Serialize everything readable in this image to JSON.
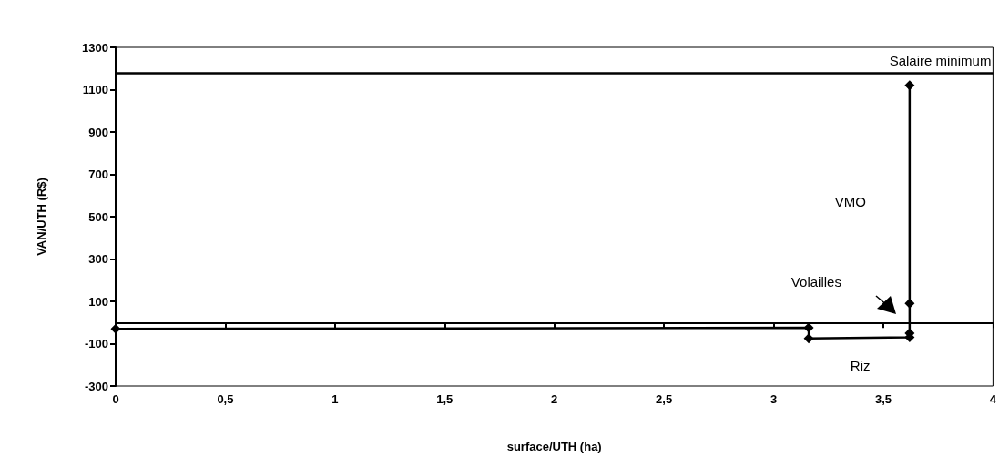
{
  "chart_data": {
    "type": "line",
    "xlabel": "surface/UTH (ha)",
    "ylabel": "VAN/UTH (R$)",
    "series": [
      {
        "color": "#000000",
        "x": [
          0,
          3.16,
          3.16,
          3.62,
          3.62,
          3.62,
          3.62
        ],
        "values": [
          -30,
          -25,
          -75,
          -70,
          -50,
          90,
          1120
        ]
      }
    ],
    "xlim": [
      0,
      4
    ],
    "xticks": [
      0,
      {
        "value": 0.5,
        "label": "0,5"
      },
      1,
      {
        "value": 1.5,
        "label": "1,5"
      },
      2,
      {
        "value": 2.5,
        "label": "2,5"
      },
      3,
      {
        "value": 3.5,
        "label": "3,5"
      },
      4
    ],
    "ylim": [
      -300,
      1300
    ],
    "yticks": [
      -300,
      -100,
      100,
      300,
      500,
      700,
      900,
      1100,
      1300
    ],
    "ref_lines": [
      {
        "axis": "y",
        "value": 1180,
        "label": "Salaire minimum",
        "color": "#000000"
      }
    ],
    "annotations": [
      "VMO",
      "Volailles",
      "Riz"
    ],
    "marker": "diamond",
    "line_style": "solid"
  }
}
